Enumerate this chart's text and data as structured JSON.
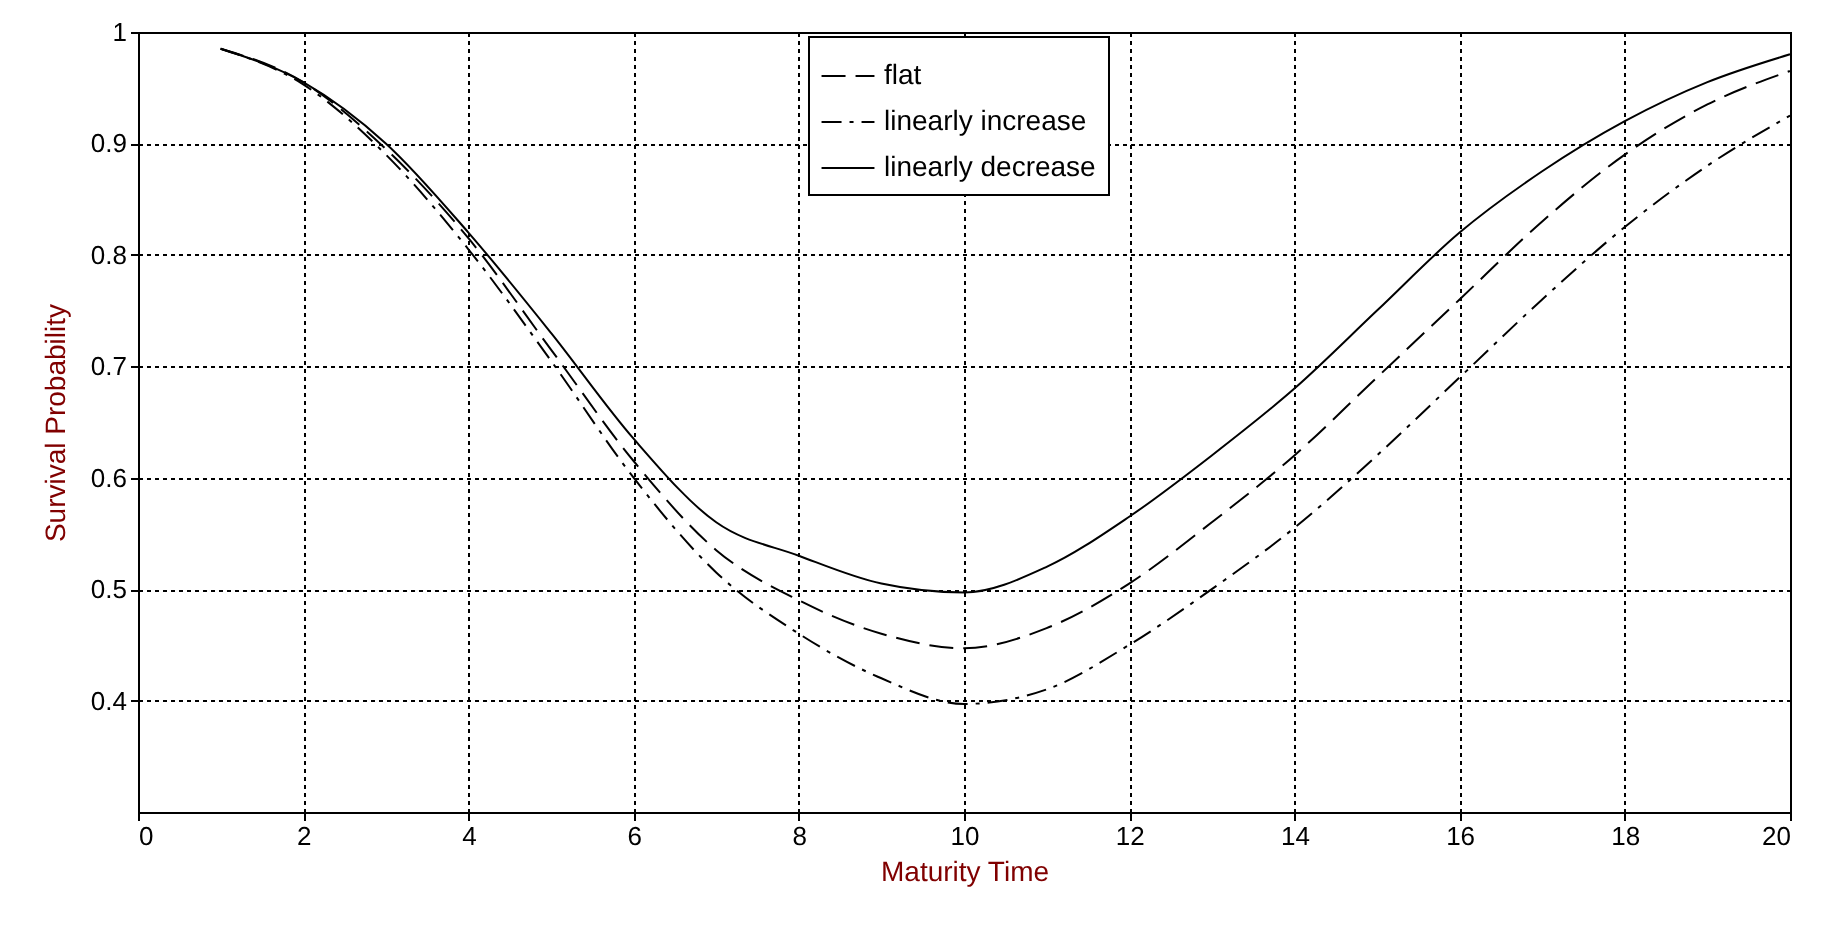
{
  "chart_data": {
    "type": "line",
    "xlabel": "Maturity Time",
    "ylabel": "Survival Probability",
    "xlim": [
      0,
      20
    ],
    "ylim": [
      0.3,
      1
    ],
    "xticks": [
      0,
      2,
      4,
      6,
      8,
      10,
      12,
      14,
      16,
      18,
      20
    ],
    "yticks": [
      0.4,
      0.5,
      0.6,
      0.7,
      0.8,
      0.9,
      1
    ],
    "grid": true,
    "legend": "top right",
    "x": [
      1,
      2,
      3,
      4,
      5,
      6,
      7,
      8,
      9,
      10,
      11,
      12,
      13,
      14,
      15,
      16,
      17,
      18,
      19,
      20
    ],
    "series": [
      {
        "name": "flat",
        "color": "#000000",
        "line_style": "dashed",
        "values": [
          0.985,
          0.955,
          0.895,
          0.815,
          0.715,
          0.615,
          0.535,
          0.49,
          0.46,
          0.447,
          0.465,
          0.505,
          0.56,
          0.62,
          0.69,
          0.76,
          0.83,
          0.89,
          0.935,
          0.965
        ]
      },
      {
        "name": "linearly increase",
        "color": "#000000",
        "line_style": "dashdot",
        "values": [
          0.985,
          0.953,
          0.89,
          0.805,
          0.705,
          0.6,
          0.515,
          0.46,
          0.42,
          0.397,
          0.41,
          0.45,
          0.5,
          0.555,
          0.62,
          0.69,
          0.76,
          0.825,
          0.88,
          0.925
        ]
      },
      {
        "name": "linearly decrease",
        "color": "#000000",
        "line_style": "solid",
        "values": [
          0.985,
          0.955,
          0.9,
          0.82,
          0.73,
          0.635,
          0.56,
          0.53,
          0.505,
          0.497,
          0.52,
          0.565,
          0.62,
          0.68,
          0.75,
          0.82,
          0.875,
          0.92,
          0.955,
          0.98
        ]
      }
    ]
  }
}
